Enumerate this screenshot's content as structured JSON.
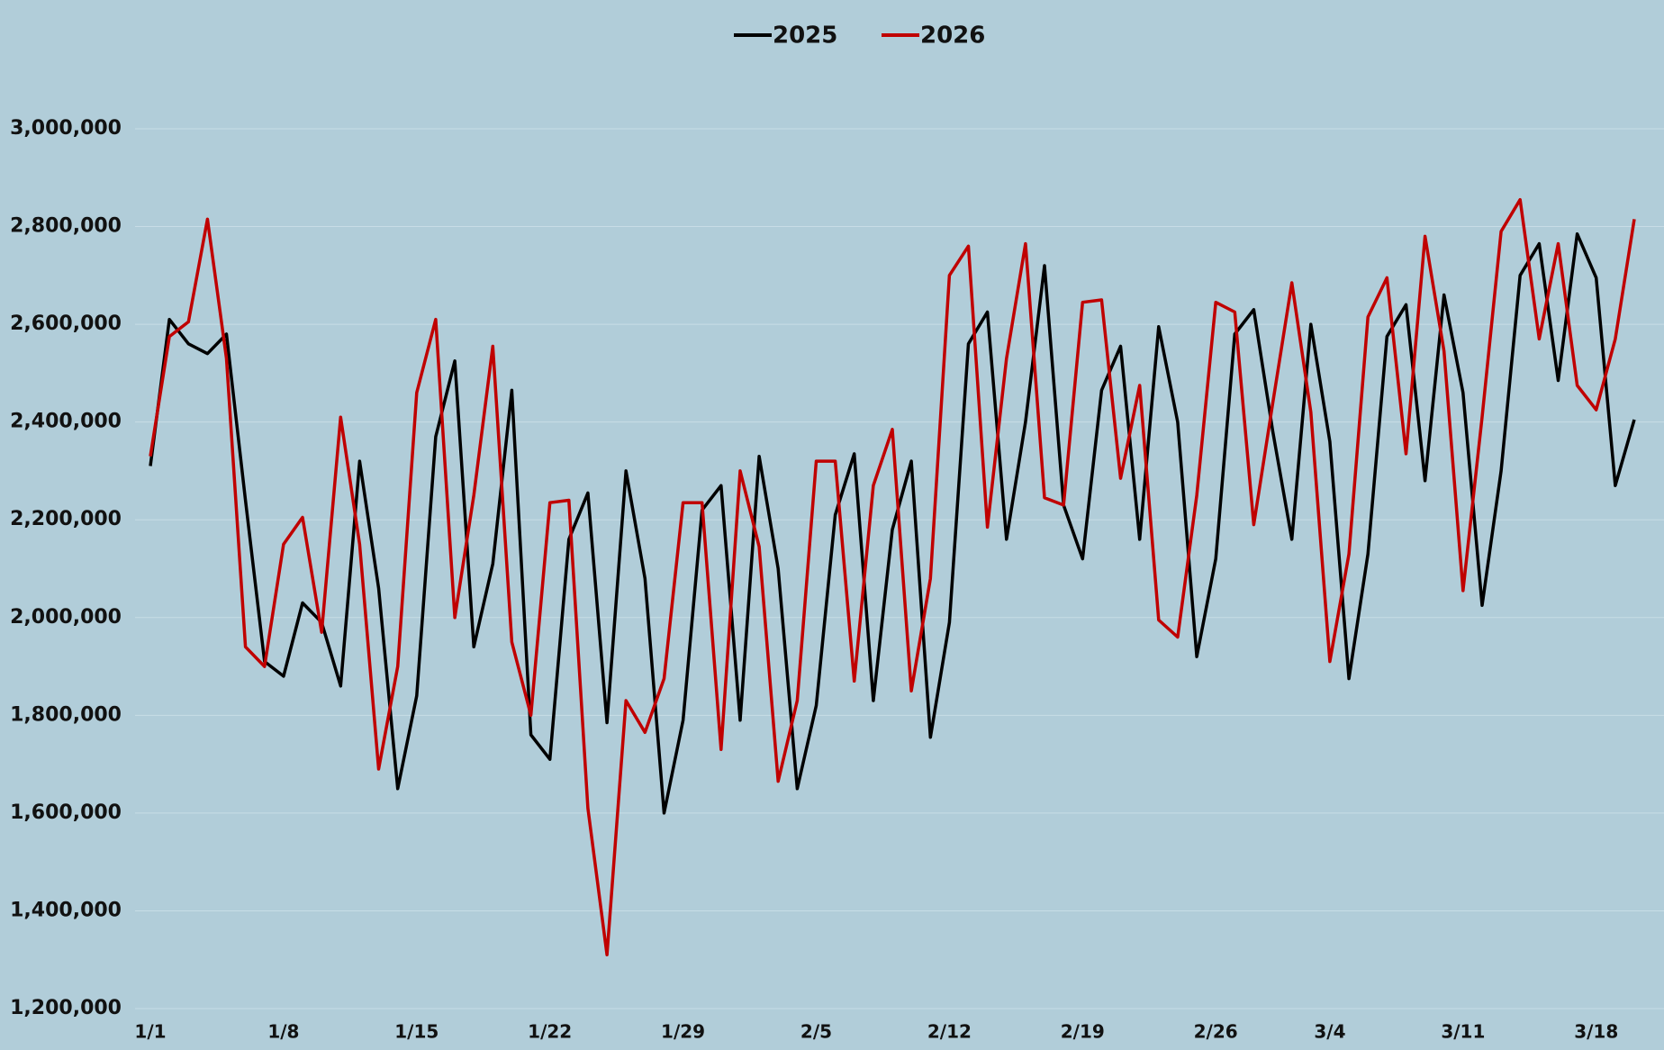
{
  "chart_data": {
    "type": "line",
    "categories": [
      "1/1",
      null,
      null,
      null,
      null,
      null,
      null,
      "1/8",
      null,
      null,
      null,
      null,
      null,
      null,
      "1/15",
      null,
      null,
      null,
      null,
      null,
      null,
      "1/22",
      null,
      null,
      null,
      null,
      null,
      null,
      "1/29",
      null,
      null,
      null,
      null,
      null,
      null,
      "2/5",
      null,
      null,
      null,
      null,
      null,
      null,
      "2/12",
      null,
      null,
      null,
      null,
      null,
      null,
      "2/19",
      null,
      null,
      null,
      null,
      null,
      null,
      "2/26",
      null,
      null,
      null,
      null,
      null,
      "3/4",
      null,
      null,
      null,
      null,
      null,
      null,
      "3/11",
      null,
      null,
      null,
      null,
      null,
      null,
      "3/18",
      null,
      null
    ],
    "series": [
      {
        "name": "2025",
        "color": "#000000",
        "values": [
          2310000,
          2610000,
          2560000,
          2540000,
          2580000,
          2240000,
          1910000,
          1880000,
          2030000,
          1990000,
          1860000,
          2320000,
          2060000,
          1650000,
          1840000,
          2370000,
          2525000,
          1940000,
          2110000,
          2465000,
          1760000,
          1710000,
          2160000,
          2255000,
          1785000,
          2300000,
          2080000,
          1600000,
          1790000,
          2220000,
          2270000,
          1790000,
          2330000,
          2100000,
          1650000,
          1820000,
          2210000,
          2335000,
          1830000,
          2180000,
          2320000,
          1755000,
          1990000,
          2560000,
          2625000,
          2160000,
          2400000,
          2720000,
          2230000,
          2120000,
          2465000,
          2555000,
          2160000,
          2595000,
          2400000,
          1920000,
          2120000,
          2580000,
          2630000,
          2380000,
          2160000,
          2600000,
          2360000,
          1875000,
          2130000,
          2575000,
          2640000,
          2280000,
          2660000,
          2460000,
          2025000,
          2300000,
          2700000,
          2765000,
          2485000,
          2785000,
          2695000,
          2270000,
          2405000
        ]
      },
      {
        "name": "2026",
        "color": "#c00000",
        "values": [
          2330000,
          2575000,
          2605000,
          2815000,
          2530000,
          1940000,
          1900000,
          2150000,
          2205000,
          1970000,
          2410000,
          2150000,
          1690000,
          1900000,
          2460000,
          2610000,
          2000000,
          2250000,
          2555000,
          1950000,
          1800000,
          2235000,
          2240000,
          1610000,
          1310000,
          1830000,
          1765000,
          1875000,
          2235000,
          2235000,
          1730000,
          2300000,
          2145000,
          1665000,
          1830000,
          2320000,
          2320000,
          1870000,
          2270000,
          2385000,
          1850000,
          2080000,
          2700000,
          2760000,
          2185000,
          2530000,
          2765000,
          2245000,
          2230000,
          2645000,
          2650000,
          2285000,
          2475000,
          1995000,
          1960000,
          2250000,
          2645000,
          2625000,
          2190000,
          2440000,
          2685000,
          2420000,
          1910000,
          2130000,
          2615000,
          2695000,
          2335000,
          2780000,
          2545000,
          2055000,
          2410000,
          2790000,
          2855000,
          2570000,
          2765000,
          2475000,
          2425000,
          2570000,
          2815000
        ]
      }
    ],
    "ylim": [
      1200000,
      3000000
    ],
    "yticks": [
      {
        "value": 1200000,
        "label": "1,200,000"
      },
      {
        "value": 1400000,
        "label": "1,400,000"
      },
      {
        "value": 1600000,
        "label": "1,600,000"
      },
      {
        "value": 1800000,
        "label": "1,800,000"
      },
      {
        "value": 2000000,
        "label": "2,000,000"
      },
      {
        "value": 2200000,
        "label": "2,200,000"
      },
      {
        "value": 2400000,
        "label": "2,400,000"
      },
      {
        "value": 2600000,
        "label": "2,600,000"
      },
      {
        "value": 2800000,
        "label": "2,800,000"
      },
      {
        "value": 3000000,
        "label": "3,000,000"
      }
    ],
    "grid": true,
    "legend": "top"
  }
}
